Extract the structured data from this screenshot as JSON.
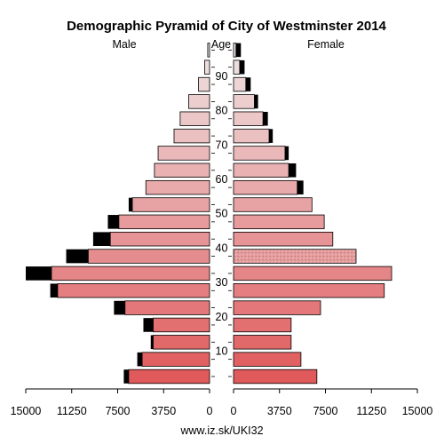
{
  "chart_data": {
    "type": "bar",
    "subtype": "population-pyramid",
    "title": "Demographic Pyramid of City of Westminster 2014",
    "left_label": "Male",
    "center_label": "Age",
    "right_label": "Female",
    "footer": "www.iz.sk/UKI32",
    "age_groups": [
      "0-4",
      "5-9",
      "10-14",
      "15-19",
      "20-24",
      "25-29",
      "30-34",
      "35-39",
      "40-44",
      "45-49",
      "50-54",
      "55-59",
      "60-64",
      "65-69",
      "70-74",
      "75-79",
      "80-84",
      "85-89",
      "90-94",
      "95+"
    ],
    "age_ticks": [
      "10",
      "20",
      "30",
      "40",
      "50",
      "60",
      "70",
      "80",
      "90"
    ],
    "x_ticks_left": [
      "15000",
      "11250",
      "7500",
      "3750",
      "0"
    ],
    "x_ticks_right": [
      "0",
      "3750",
      "7500",
      "11250",
      "15000"
    ],
    "xlim": [
      0,
      15000
    ],
    "series": [
      {
        "name": "Male",
        "values": [
          6600,
          5500,
          4600,
          4600,
          6900,
          12400,
          12900,
          9900,
          8100,
          7400,
          6300,
          5200,
          4500,
          4200,
          2900,
          2400,
          1700,
          900,
          400,
          150
        ]
      },
      {
        "name": "Male (other)",
        "values": [
          400,
          400,
          200,
          800,
          900,
          600,
          2100,
          1800,
          1400,
          900,
          300,
          0,
          0,
          0,
          0,
          0,
          0,
          0,
          0,
          0
        ]
      },
      {
        "name": "Female",
        "values": [
          6800,
          5500,
          4700,
          4700,
          7100,
          12300,
          12900,
          10000,
          8100,
          7400,
          6400,
          5200,
          4500,
          4200,
          2900,
          2400,
          1700,
          1000,
          500,
          200
        ]
      },
      {
        "name": "Female (other)",
        "values": [
          0,
          0,
          0,
          0,
          0,
          0,
          0,
          0,
          0,
          0,
          0,
          500,
          600,
          300,
          300,
          400,
          300,
          400,
          400,
          400
        ]
      }
    ],
    "colors": {
      "other": "#000000",
      "young": "#e05a5c",
      "old": "#ece0e0",
      "border": "#000000",
      "highlight_pattern": "#e8a8a8"
    },
    "highlight_bar": {
      "side": "Female",
      "age_group": "35-39"
    }
  }
}
